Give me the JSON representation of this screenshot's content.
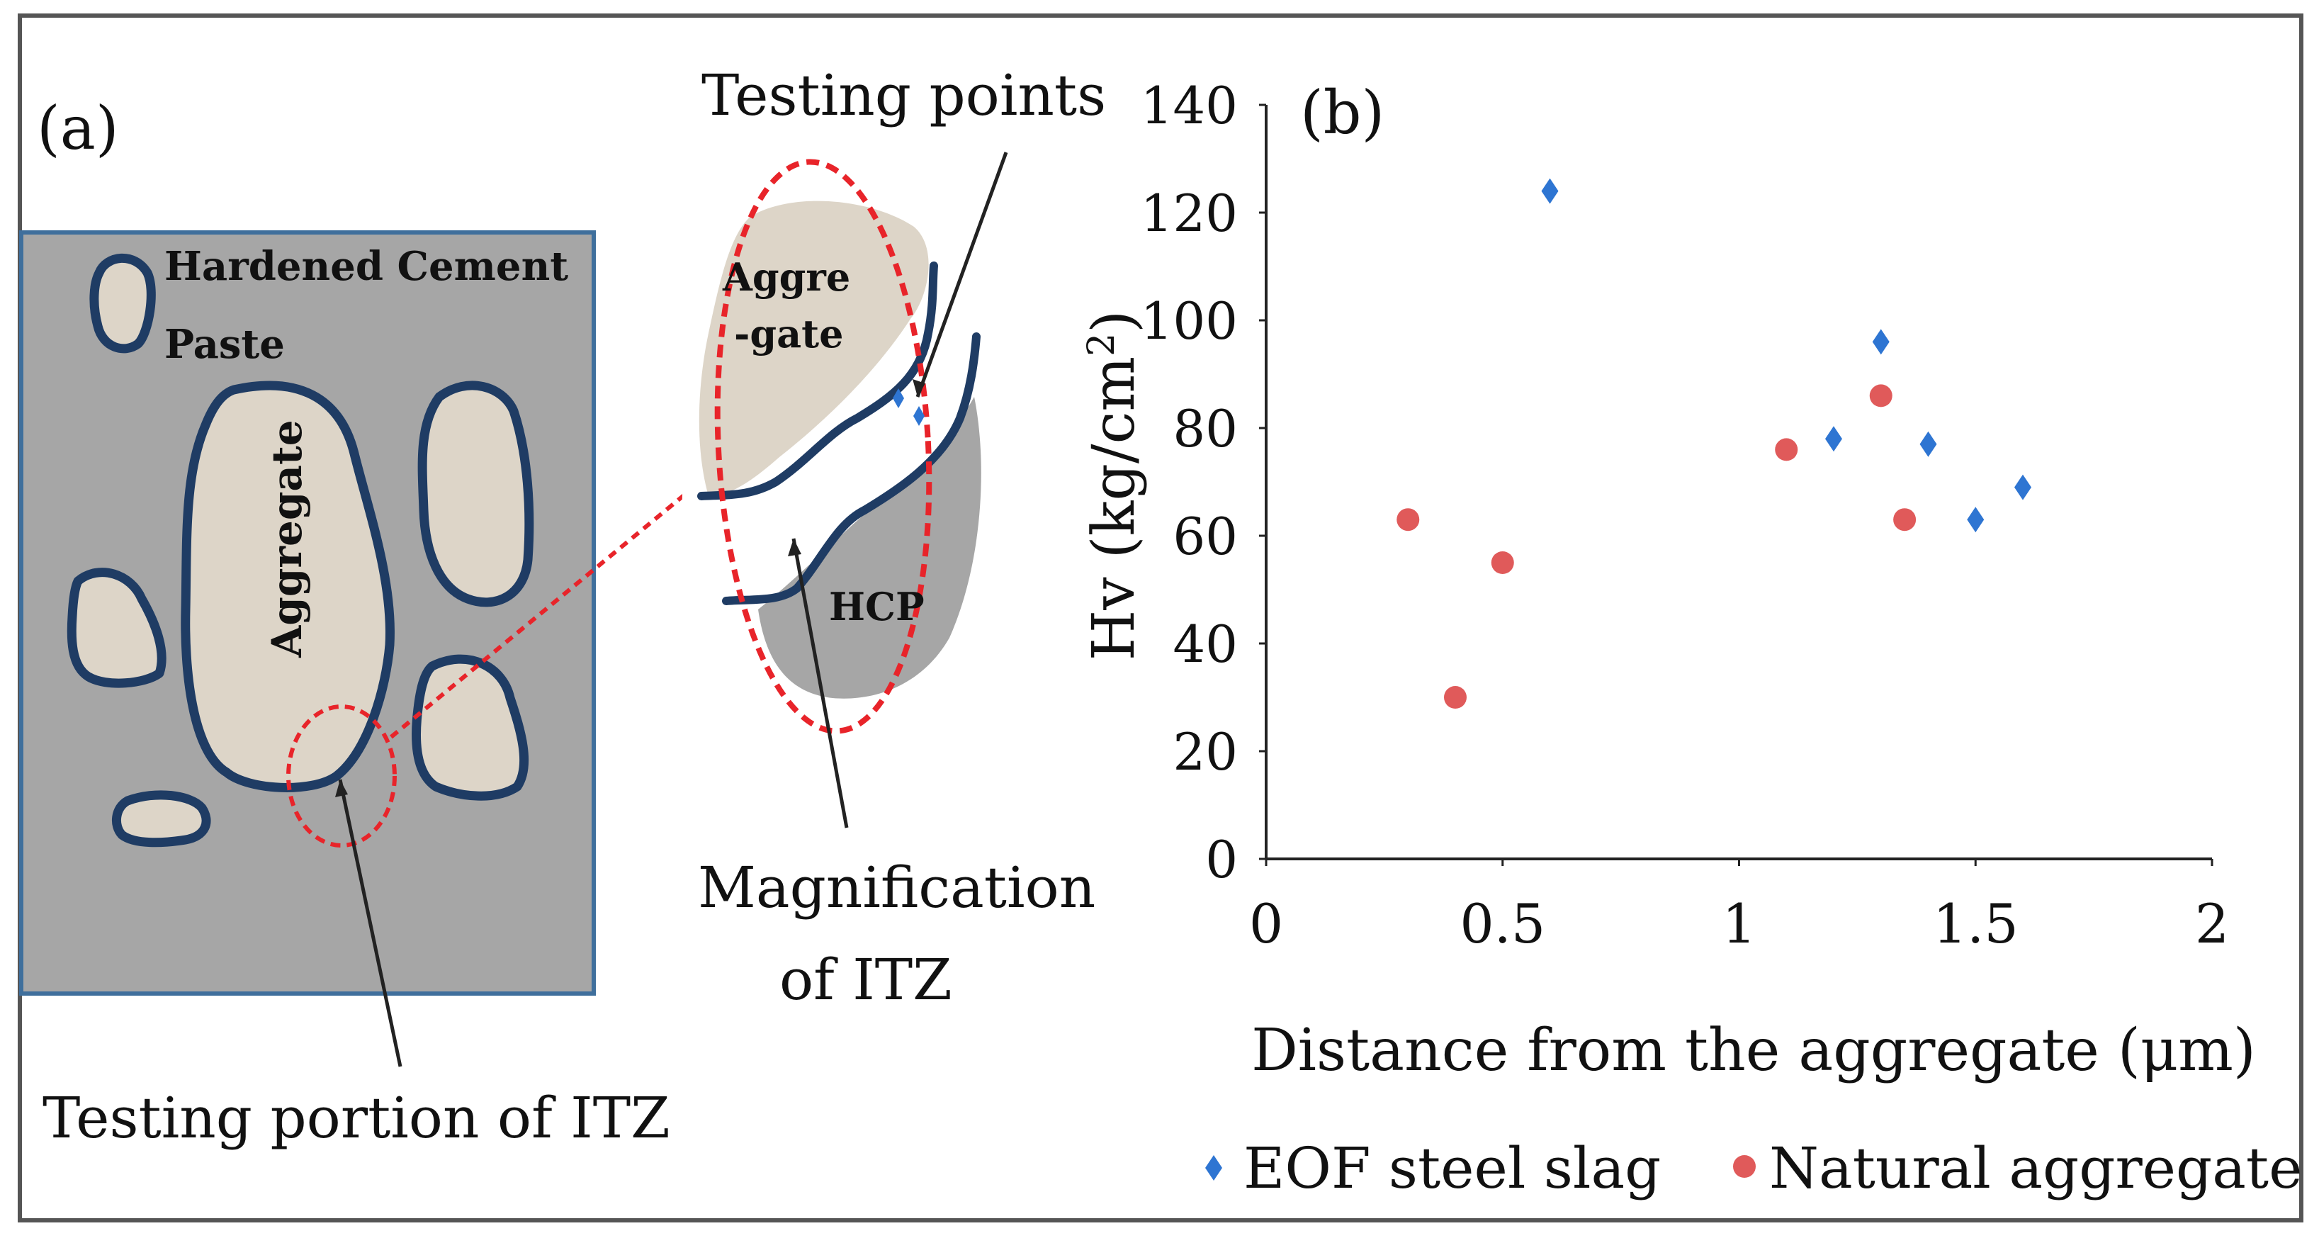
{
  "panel_a": {
    "label": "(a)",
    "matrix_label_line1": "Hardened Cement",
    "matrix_label_line2": "Paste",
    "aggregate_label": "Aggregate",
    "zoom_aggregate_line1": "Aggre",
    "zoom_aggregate_line2": "-gate",
    "hcp_label": "HCP",
    "testing_points_label": "Testing points",
    "magnification_line1": "Magnification",
    "magnification_line2": "of ITZ",
    "testing_portion_label": "Testing portion of ITZ",
    "colors": {
      "matrix_fill": "#a6a6a6",
      "aggregate_fill": "#ddd5c8",
      "outline": "#1f3c64",
      "dashed": "#e8242a",
      "point": "#2e75d2"
    }
  },
  "chart_data": {
    "type": "scatter",
    "panel_label": "(b)",
    "xlabel": "Distance from the aggregate (μm)",
    "ylabel": "Hv (kg/cm²)",
    "ylabel_main": "Hv (kg/cm",
    "ylabel_sup": "2",
    "ylabel_close": ")",
    "xlim": [
      0,
      2
    ],
    "ylim": [
      0,
      140
    ],
    "xticks": [
      {
        "value": 0,
        "label": "0"
      },
      {
        "value": 0.5,
        "label": "0.5"
      },
      {
        "value": 1,
        "label": "1"
      },
      {
        "value": 1.5,
        "label": "1.5"
      },
      {
        "value": 2,
        "label": "2"
      }
    ],
    "yticks": [
      {
        "value": 0,
        "label": "0"
      },
      {
        "value": 20,
        "label": "20"
      },
      {
        "value": 40,
        "label": "40"
      },
      {
        "value": 60,
        "label": "60"
      },
      {
        "value": 80,
        "label": "80"
      },
      {
        "value": 100,
        "label": "100"
      },
      {
        "value": 120,
        "label": "120"
      },
      {
        "value": 140,
        "label": "140"
      }
    ],
    "grid": false,
    "legend_position": "bottom",
    "series": [
      {
        "name": "EOF steel slag",
        "color": "#2e75d2",
        "marker": "diamond",
        "points": [
          {
            "x": 0.6,
            "y": 124
          },
          {
            "x": 1.2,
            "y": 78
          },
          {
            "x": 1.3,
            "y": 96
          },
          {
            "x": 1.4,
            "y": 77
          },
          {
            "x": 1.5,
            "y": 63
          },
          {
            "x": 1.6,
            "y": 69
          }
        ]
      },
      {
        "name": "Natural aggregate",
        "color": "#e05a5a",
        "marker": "circle",
        "points": [
          {
            "x": 0.3,
            "y": 63
          },
          {
            "x": 0.4,
            "y": 30
          },
          {
            "x": 0.5,
            "y": 55
          },
          {
            "x": 1.1,
            "y": 76
          },
          {
            "x": 1.3,
            "y": 86
          },
          {
            "x": 1.35,
            "y": 63
          }
        ]
      }
    ]
  }
}
